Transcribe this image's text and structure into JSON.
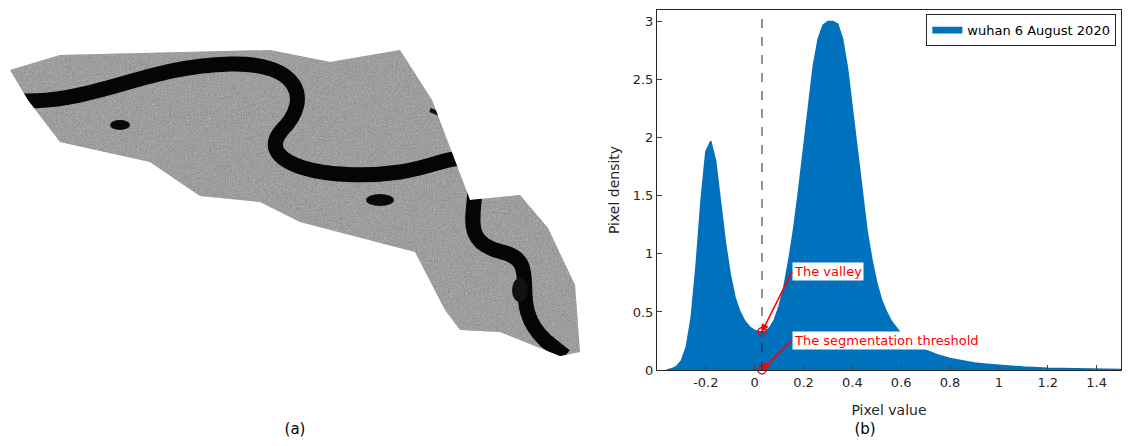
{
  "image_panel": {
    "label": "(a)"
  },
  "chart_data": {
    "type": "area",
    "panel_label": "(b)",
    "xlabel": "Pixel value",
    "ylabel": "Pixel density",
    "xlim": [
      -0.4,
      1.5
    ],
    "ylim": [
      0,
      3.1
    ],
    "xticks": [
      -0.2,
      0,
      0.2,
      0.4,
      0.6,
      0.8,
      1,
      1.2,
      1.4
    ],
    "yticks": [
      0,
      0.5,
      1,
      1.5,
      2,
      2.5,
      3
    ],
    "grid": false,
    "legend": "upper right",
    "threshold_x": 0.03,
    "series": [
      {
        "name": "wuhan 6 August 2020",
        "color": "#0072bd",
        "x": [
          -0.36,
          -0.34,
          -0.32,
          -0.3,
          -0.28,
          -0.26,
          -0.24,
          -0.22,
          -0.2,
          -0.18,
          -0.16,
          -0.14,
          -0.12,
          -0.1,
          -0.08,
          -0.06,
          -0.04,
          -0.02,
          0.0,
          0.02,
          0.04,
          0.06,
          0.08,
          0.1,
          0.12,
          0.14,
          0.16,
          0.18,
          0.2,
          0.22,
          0.24,
          0.26,
          0.28,
          0.3,
          0.32,
          0.34,
          0.36,
          0.38,
          0.4,
          0.42,
          0.44,
          0.46,
          0.48,
          0.5,
          0.52,
          0.54,
          0.56,
          0.58,
          0.6,
          0.62,
          0.64,
          0.66,
          0.68,
          0.7,
          0.75,
          0.8,
          0.85,
          0.9,
          0.95,
          1.0,
          1.1,
          1.2,
          1.3,
          1.4,
          1.5
        ],
        "values": [
          0,
          0.01,
          0.03,
          0.08,
          0.2,
          0.45,
          0.9,
          1.45,
          1.88,
          1.97,
          1.8,
          1.45,
          1.1,
          0.82,
          0.62,
          0.5,
          0.42,
          0.37,
          0.34,
          0.33,
          0.33,
          0.36,
          0.43,
          0.55,
          0.72,
          0.95,
          1.22,
          1.55,
          1.9,
          2.3,
          2.62,
          2.85,
          2.97,
          3.0,
          3.0,
          2.98,
          2.85,
          2.6,
          2.25,
          1.85,
          1.5,
          1.2,
          0.95,
          0.75,
          0.6,
          0.5,
          0.42,
          0.36,
          0.31,
          0.27,
          0.24,
          0.21,
          0.19,
          0.17,
          0.13,
          0.1,
          0.08,
          0.06,
          0.05,
          0.04,
          0.025,
          0.015,
          0.01,
          0.006,
          0.004
        ]
      }
    ],
    "annotations": [
      {
        "text": "The valley",
        "x": 0.03,
        "y": 0.33,
        "color": "#ff0000"
      },
      {
        "text": "The segmentation threshold",
        "x": 0.03,
        "y": 0,
        "color": "#ff0000"
      }
    ]
  }
}
